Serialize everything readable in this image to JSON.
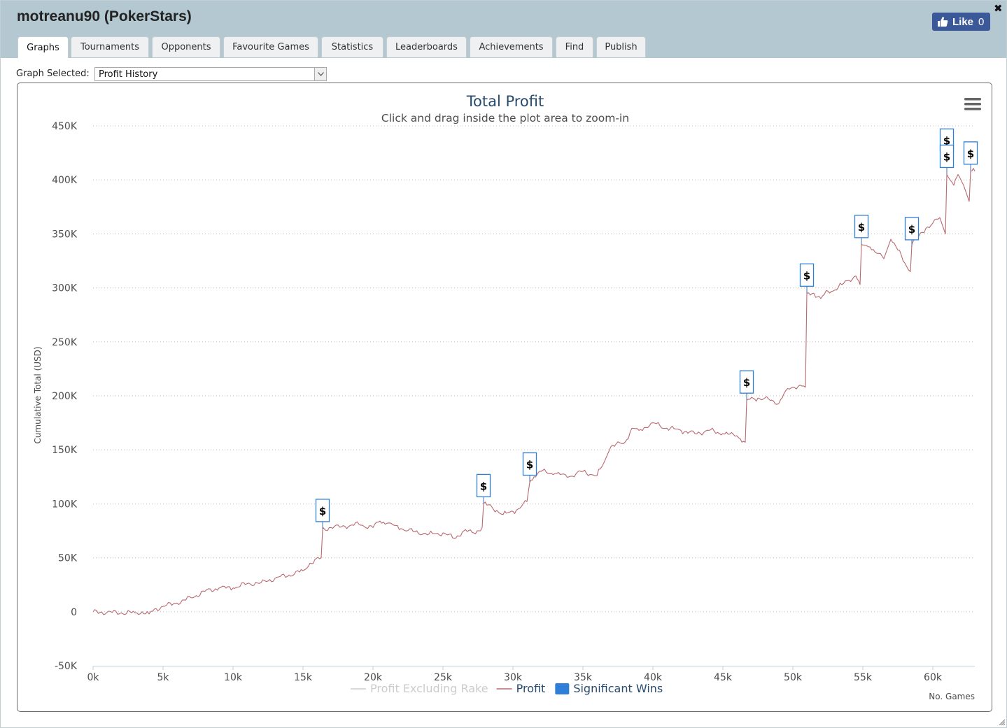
{
  "window": {
    "title": "motreanu90 (PokerStars)",
    "close_glyph": "✖",
    "like_label": "Like",
    "like_count": "0"
  },
  "tabs": [
    {
      "label": "Graphs",
      "active": true
    },
    {
      "label": "Tournaments"
    },
    {
      "label": "Opponents"
    },
    {
      "label": "Favourite Games"
    },
    {
      "label": "Statistics"
    },
    {
      "label": "Leaderboards"
    },
    {
      "label": "Achievements"
    },
    {
      "label": "Find"
    },
    {
      "label": "Publish"
    }
  ],
  "graph_selector": {
    "label": "Graph Selected:",
    "value": "Profit History"
  },
  "chart_data": {
    "type": "line",
    "title": "Total Profit",
    "subtitle": "Click and drag inside the plot area to zoom-in",
    "ylabel": "Cumulative Total (USD)",
    "xlabel": "No. Games",
    "ylim": [
      -50000,
      450000
    ],
    "xlim": [
      0,
      63000
    ],
    "x_ticks": [
      "0k",
      "5k",
      "10k",
      "15k",
      "20k",
      "25k",
      "30k",
      "35k",
      "40k",
      "45k",
      "50k",
      "55k",
      "60k"
    ],
    "y_ticks": [
      "-50K",
      "0",
      "50K",
      "100K",
      "150K",
      "200K",
      "250K",
      "300K",
      "350K",
      "400K",
      "450K"
    ],
    "grid": true,
    "legend_position": "bottom-center",
    "legend": [
      {
        "name": "Profit Excluding Rake",
        "color": "#cccccc",
        "kind": "line",
        "hidden": true
      },
      {
        "name": "Profit",
        "color": "#b86a6f",
        "kind": "line"
      },
      {
        "name": "Significant Wins",
        "color": "#2f7ed8",
        "kind": "box"
      }
    ],
    "series": [
      {
        "name": "Profit",
        "color": "#b86a6f",
        "points": [
          [
            0,
            0
          ],
          [
            1000,
            -500
          ],
          [
            2000,
            -1000
          ],
          [
            3000,
            -1000
          ],
          [
            3500,
            0
          ],
          [
            4000,
            -2000
          ],
          [
            4500,
            3000
          ],
          [
            5000,
            5000
          ],
          [
            6000,
            8000
          ],
          [
            7000,
            13000
          ],
          [
            8000,
            19000
          ],
          [
            9000,
            22000
          ],
          [
            10000,
            22000
          ],
          [
            11000,
            26000
          ],
          [
            12000,
            27000
          ],
          [
            13000,
            31000
          ],
          [
            14000,
            34000
          ],
          [
            15000,
            38000
          ],
          [
            15500,
            45000
          ],
          [
            16300,
            50000
          ],
          [
            16400,
            76000
          ],
          [
            16500,
            77000
          ],
          [
            17000,
            78000
          ],
          [
            18000,
            79000
          ],
          [
            19000,
            81000
          ],
          [
            20000,
            78000
          ],
          [
            20500,
            84000
          ],
          [
            21000,
            82000
          ],
          [
            22000,
            77000
          ],
          [
            23000,
            74000
          ],
          [
            24000,
            72000
          ],
          [
            25000,
            73000
          ],
          [
            25800,
            68000
          ],
          [
            26500,
            75000
          ],
          [
            27200,
            73000
          ],
          [
            27800,
            78000
          ],
          [
            27900,
            100000
          ],
          [
            28500,
            97000
          ],
          [
            29300,
            90000
          ],
          [
            30000,
            93000
          ],
          [
            30500,
            96000
          ],
          [
            31000,
            102000
          ],
          [
            31200,
            120000
          ],
          [
            31500,
            125000
          ],
          [
            32000,
            130000
          ],
          [
            33000,
            128000
          ],
          [
            34000,
            125000
          ],
          [
            35000,
            130000
          ],
          [
            36000,
            126000
          ],
          [
            36500,
            138000
          ],
          [
            37000,
            153000
          ],
          [
            38000,
            157000
          ],
          [
            38500,
            170000
          ],
          [
            39000,
            168000
          ],
          [
            40000,
            175000
          ],
          [
            41000,
            170000
          ],
          [
            42000,
            168000
          ],
          [
            43000,
            165000
          ],
          [
            44000,
            168000
          ],
          [
            45000,
            165000
          ],
          [
            46000,
            163000
          ],
          [
            46600,
            157000
          ],
          [
            46700,
            196000
          ],
          [
            47500,
            198000
          ],
          [
            48500,
            196000
          ],
          [
            49000,
            193000
          ],
          [
            49500,
            205000
          ],
          [
            50000,
            208000
          ],
          [
            50500,
            210000
          ],
          [
            50900,
            208000
          ],
          [
            51000,
            295000
          ],
          [
            51500,
            295000
          ],
          [
            52000,
            290000
          ],
          [
            52500,
            297000
          ],
          [
            53000,
            298000
          ],
          [
            53500,
            303000
          ],
          [
            54000,
            307000
          ],
          [
            54500,
            311000
          ],
          [
            54800,
            303000
          ],
          [
            54900,
            340000
          ],
          [
            55500,
            338000
          ],
          [
            56000,
            332000
          ],
          [
            56500,
            327000
          ],
          [
            57000,
            345000
          ],
          [
            57500,
            335000
          ],
          [
            58000,
            323000
          ],
          [
            58400,
            315000
          ],
          [
            58500,
            340000
          ],
          [
            59000,
            348000
          ],
          [
            59500,
            355000
          ],
          [
            60000,
            360000
          ],
          [
            60500,
            365000
          ],
          [
            60900,
            350000
          ],
          [
            61000,
            405000
          ],
          [
            61500,
            395000
          ],
          [
            61800,
            405000
          ],
          [
            62200,
            395000
          ],
          [
            62600,
            380000
          ],
          [
            62700,
            408000
          ],
          [
            63000,
            408000
          ]
        ]
      }
    ],
    "significant_wins": [
      {
        "x": 16400,
        "y": 77000,
        "label": "$"
      },
      {
        "x": 27900,
        "y": 100000,
        "label": "$"
      },
      {
        "x": 31200,
        "y": 120000,
        "label": "$"
      },
      {
        "x": 46700,
        "y": 196000,
        "label": "$"
      },
      {
        "x": 51000,
        "y": 295000,
        "label": "$"
      },
      {
        "x": 54900,
        "y": 340000,
        "label": "$"
      },
      {
        "x": 58500,
        "y": 338000,
        "label": "$"
      },
      {
        "x": 61000,
        "y": 420000,
        "label": "$"
      },
      {
        "x": 61000,
        "y": 405000,
        "label": "$"
      },
      {
        "x": 62700,
        "y": 408000,
        "label": "$"
      }
    ]
  }
}
